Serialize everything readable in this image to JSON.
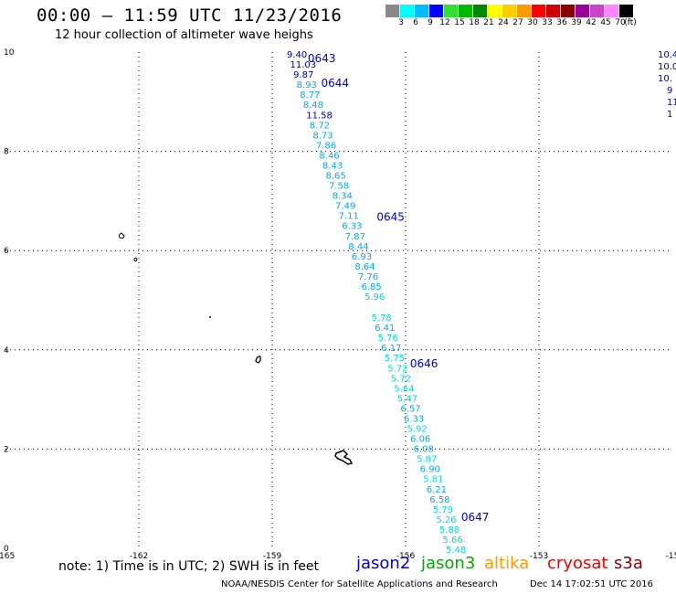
{
  "header": {
    "title": "00:00 – 11:59 UTC 11/23/2016",
    "subtitle": "12 hour collection of altimeter wave heighs"
  },
  "color_scale": {
    "unit": "(ft)",
    "bins": [
      {
        "color": "#888888",
        "label": "3"
      },
      {
        "color": "#00ffff",
        "label": "6"
      },
      {
        "color": "#00bbff",
        "label": "9"
      },
      {
        "color": "#0000ff",
        "label": "12"
      },
      {
        "color": "#33dd33",
        "label": "15"
      },
      {
        "color": "#00bb00",
        "label": "18"
      },
      {
        "color": "#008800",
        "label": "21"
      },
      {
        "color": "#ffff00",
        "label": "24"
      },
      {
        "color": "#ffcc00",
        "label": "27"
      },
      {
        "color": "#ff9900",
        "label": "30"
      },
      {
        "color": "#ff0000",
        "label": "33"
      },
      {
        "color": "#cc0000",
        "label": "36"
      },
      {
        "color": "#880000",
        "label": "39"
      },
      {
        "color": "#990099",
        "label": "42"
      },
      {
        "color": "#cc44cc",
        "label": "45"
      },
      {
        "color": "#ff88ff",
        "label": "70"
      },
      {
        "color": "#000000",
        "label": ""
      }
    ]
  },
  "map": {
    "lon_ticks": [
      {
        "lon": -165,
        "label": "-165"
      },
      {
        "lon": -162,
        "label": "-162"
      },
      {
        "lon": -159,
        "label": "-159"
      },
      {
        "lon": -156,
        "label": "-156"
      },
      {
        "lon": -153,
        "label": "-153"
      },
      {
        "lon": -150,
        "label": "-15"
      }
    ],
    "lat_ticks": [
      {
        "lat": 0,
        "label": "0"
      },
      {
        "lat": 2,
        "label": "2"
      },
      {
        "lat": 4,
        "label": "4"
      },
      {
        "lat": 6,
        "label": "6"
      },
      {
        "lat": 8,
        "label": "8"
      },
      {
        "lat": 10,
        "label": "10"
      }
    ],
    "time_labels": [
      {
        "text": "0643",
        "lon": -158.2,
        "lat": 9.8,
        "color": "#0000cc"
      },
      {
        "text": "0644",
        "lon": -157.9,
        "lat": 9.3,
        "color": "#0000cc"
      },
      {
        "text": "0645",
        "lon": -156.65,
        "lat": 6.6,
        "color": "#0000cc"
      },
      {
        "text": "0646",
        "lon": -155.9,
        "lat": 3.65,
        "color": "#0000cc"
      },
      {
        "text": "0647",
        "lon": -154.75,
        "lat": 0.55,
        "color": "#0000cc"
      }
    ],
    "swh_readings": [
      {
        "v": "9.40",
        "c": "#0000aa"
      },
      {
        "v": "11.03",
        "c": "#0000aa"
      },
      {
        "v": "9.87",
        "c": "#0000aa"
      },
      {
        "v": "8.93",
        "c": "#00aaee"
      },
      {
        "v": "8.77",
        "c": "#00aaee"
      },
      {
        "v": "8.48",
        "c": "#00aaee"
      },
      {
        "v": "11.58",
        "c": "#0000aa"
      },
      {
        "v": "8.72",
        "c": "#00aaee"
      },
      {
        "v": "8.73",
        "c": "#00aaee"
      },
      {
        "v": "7.86",
        "c": "#00aaee"
      },
      {
        "v": "8.46",
        "c": "#00aaee"
      },
      {
        "v": "8.43",
        "c": "#00aaee"
      },
      {
        "v": "8.65",
        "c": "#00aaee"
      },
      {
        "v": "7.58",
        "c": "#00aaee"
      },
      {
        "v": "8.34",
        "c": "#00aaee"
      },
      {
        "v": "7.49",
        "c": "#00aaee"
      },
      {
        "v": "7.11",
        "c": "#00aaee"
      },
      {
        "v": "6.33",
        "c": "#00aaee"
      },
      {
        "v": "7.87",
        "c": "#00aaee"
      },
      {
        "v": "8.44",
        "c": "#00aaee"
      },
      {
        "v": "6.93",
        "c": "#00aaee"
      },
      {
        "v": "8.64",
        "c": "#00aaee"
      },
      {
        "v": "7.76",
        "c": "#00aaee"
      },
      {
        "v": "6.85",
        "c": "#00aaee"
      },
      {
        "v": "5.96",
        "c": "#00ccee"
      },
      {
        "v": "5.78",
        "c": "#00dddd"
      },
      {
        "v": "6.41",
        "c": "#00aaee"
      },
      {
        "v": "5.76",
        "c": "#00dddd"
      },
      {
        "v": "6.17",
        "c": "#00aaee"
      },
      {
        "v": "5.75",
        "c": "#00dddd"
      },
      {
        "v": "5.72",
        "c": "#00dddd"
      },
      {
        "v": "5.72",
        "c": "#00dddd"
      },
      {
        "v": "5.64",
        "c": "#00dddd"
      },
      {
        "v": "5.47",
        "c": "#00dddd"
      },
      {
        "v": "6.57",
        "c": "#00aaee"
      },
      {
        "v": "6.33",
        "c": "#00aaee"
      },
      {
        "v": "5.92",
        "c": "#00dddd"
      },
      {
        "v": "6.06",
        "c": "#00aaee"
      },
      {
        "v": "6.08",
        "c": "#00aaee"
      },
      {
        "v": "5.87",
        "c": "#00dddd"
      },
      {
        "v": "6.90",
        "c": "#00aaee"
      },
      {
        "v": "5.81",
        "c": "#00dddd"
      },
      {
        "v": "6.21",
        "c": "#00aaee"
      },
      {
        "v": "6.58",
        "c": "#00aaee"
      },
      {
        "v": "5.79",
        "c": "#00dddd"
      },
      {
        "v": "5.26",
        "c": "#00dddd"
      },
      {
        "v": "5.88",
        "c": "#00dddd"
      },
      {
        "v": "5.66",
        "c": "#00dddd"
      },
      {
        "v": "5.48",
        "c": "#00dddd"
      }
    ],
    "edge_readings": [
      {
        "v": "10.4",
        "c": "#0000aa"
      },
      {
        "v": "10.0",
        "c": "#0000aa"
      },
      {
        "v": "10.",
        "c": "#0000aa"
      },
      {
        "v": "9",
        "c": "#0000aa"
      },
      {
        "v": "11",
        "c": "#0000aa"
      },
      {
        "v": "1",
        "c": "#0000aa"
      }
    ]
  },
  "footer": {
    "note": "note:  1) Time is in UTC;  2) SWH is in feet",
    "satellites": [
      {
        "name": "jason2",
        "color": "#0000cc"
      },
      {
        "name": "jason3",
        "color": "#00aa00"
      },
      {
        "name": "altika",
        "color": "#ff9900"
      },
      {
        "name": "cryosat",
        "color": "#ee0000"
      },
      {
        "name": "s3a",
        "color": "#880000"
      }
    ],
    "credit": "NOAA/NESDIS Center for Satellite Applications and Research",
    "timestamp": "Dec 14 17:02:51 UTC 2016"
  }
}
